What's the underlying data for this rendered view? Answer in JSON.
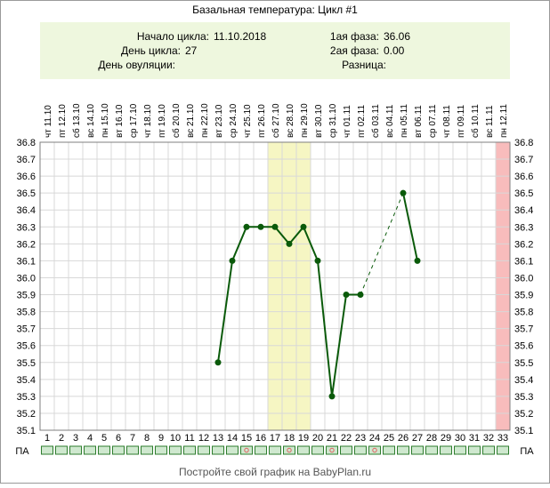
{
  "title": "Базальная температура: Цикл #1",
  "info": {
    "cycle_start_label": "Начало цикла:",
    "cycle_start_value": "11.10.2018",
    "cycle_day_label": "День цикла:",
    "cycle_day_value": "27",
    "ovulation_label": "День овуляции:",
    "ovulation_value": "",
    "phase1_label": "1ая фаза:",
    "phase1_value": "36.06",
    "phase2_label": "2ая фаза:",
    "phase2_value": "0.00",
    "diff_label": "Разница:",
    "diff_value": ""
  },
  "pa_label": "ПА",
  "footer": "Постройте свой график на BabyPlan.ru",
  "colors": {
    "line": "#0a5a0a",
    "info_bg": "#eef7de",
    "ovulation_band": "#f6f6c3",
    "today_band": "#f8bcbc",
    "pa_cell": "#cfe8cf",
    "pa_marker": "#e06060",
    "grid": "#d8d8d8"
  },
  "chart_data": {
    "type": "line",
    "title": "Базальная температура: Цикл #1",
    "ylim": [
      35.1,
      36.8
    ],
    "yticks": [
      "35.1",
      "35.2",
      "35.3",
      "35.4",
      "35.5",
      "35.6",
      "35.7",
      "35.8",
      "35.9",
      "36.0",
      "36.1",
      "36.2",
      "36.3",
      "36.4",
      "36.5",
      "36.6",
      "36.7",
      "36.8"
    ],
    "days": [
      1,
      2,
      3,
      4,
      5,
      6,
      7,
      8,
      9,
      10,
      11,
      12,
      13,
      14,
      15,
      16,
      17,
      18,
      19,
      20,
      21,
      22,
      23,
      24,
      25,
      26,
      27,
      28,
      29,
      30,
      31,
      32,
      33
    ],
    "dates": [
      "чт 11.10",
      "пт 12.10",
      "сб 13.10",
      "вс 14.10",
      "пн 15.10",
      "вт 16.10",
      "ср 17.10",
      "чт 18.10",
      "пт 19.10",
      "сб 20.10",
      "вс 21.10",
      "пн 22.10",
      "вт 23.10",
      "ср 24.10",
      "чт 25.10",
      "пт 26.10",
      "сб 27.10",
      "вс 28.10",
      "пн 29.10",
      "вт 30.10",
      "ср 31.10",
      "чт 01.11",
      "пт 02.11",
      "сб 03.11",
      "вс 04.11",
      "пн 05.11",
      "вт 06.11",
      "ср 07.11",
      "чт 08.11",
      "пт 09.11",
      "сб 10.11",
      "вс 11.11",
      "пн 12.11"
    ],
    "series": [
      {
        "points": [
          [
            13,
            35.5
          ],
          [
            14,
            36.1
          ],
          [
            15,
            36.3
          ],
          [
            16,
            36.3
          ],
          [
            17,
            36.3
          ],
          [
            18,
            36.2
          ],
          [
            19,
            36.3
          ],
          [
            20,
            36.1
          ],
          [
            21,
            35.3
          ],
          [
            22,
            35.9
          ],
          [
            23,
            35.9
          ],
          [
            26,
            36.5
          ],
          [
            27,
            36.1
          ]
        ]
      }
    ],
    "gap": {
      "from": [
        23,
        35.9
      ],
      "to": [
        26,
        36.5
      ]
    },
    "highlight_days": [
      17,
      18,
      19
    ],
    "today_day": 33,
    "pa_days": [
      15,
      18,
      21,
      24
    ],
    "grid": true
  }
}
